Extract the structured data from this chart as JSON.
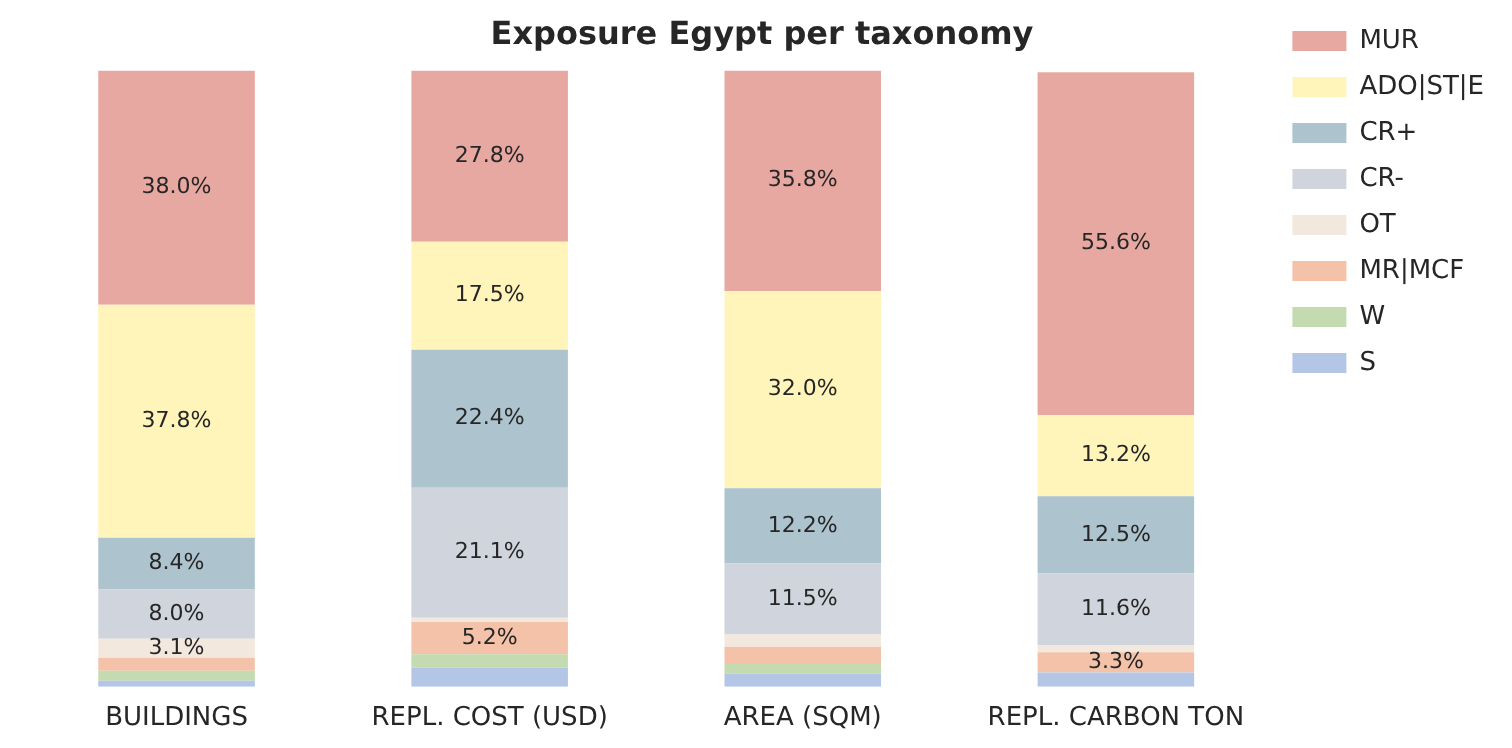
{
  "chart_data": {
    "type": "bar",
    "title": "Exposure Egypt per taxonomy",
    "stacked": true,
    "legend": "top right",
    "grid": false,
    "categories": [
      "BUILDINGS",
      "REPL. COST (USD)",
      "AREA (SQM)",
      "REPL. CARBON TON"
    ],
    "series": [
      {
        "name": "S",
        "color": "#b4c6e6",
        "values": [
          1.0,
          3.1,
          2.1,
          2.3
        ],
        "value_labels": [
          null,
          null,
          null,
          null
        ]
      },
      {
        "name": "W",
        "color": "#c4dab0",
        "values": [
          1.6,
          2.2,
          1.6,
          null
        ],
        "value_labels": [
          null,
          null,
          null,
          null
        ]
      },
      {
        "name": "MR|MCF",
        "color": "#f4c2a8",
        "values": [
          2.1,
          5.2,
          2.8,
          3.3
        ],
        "value_labels": [
          null,
          "5.2%",
          null,
          "3.3%"
        ]
      },
      {
        "name": "OT",
        "color": "#f3e8de",
        "values": [
          3.1,
          0.7,
          2.0,
          1.2
        ],
        "value_labels": [
          "3.1%",
          null,
          null,
          null
        ]
      },
      {
        "name": "CR-",
        "color": "#d0d4dc",
        "values": [
          8.0,
          21.1,
          11.5,
          11.6
        ],
        "value_labels": [
          "8.0%",
          "21.1%",
          "11.5%",
          "11.6%"
        ]
      },
      {
        "name": "CR+",
        "color": "#adc4ce",
        "values": [
          8.4,
          22.4,
          12.2,
          12.5
        ],
        "value_labels": [
          "8.4%",
          "22.4%",
          "12.2%",
          "12.5%"
        ]
      },
      {
        "name": "ADO|ST|E",
        "color": "#fff5bb",
        "values": [
          37.8,
          17.5,
          32.0,
          13.2
        ],
        "value_labels": [
          "37.8%",
          "17.5%",
          "32.0%",
          "13.2%"
        ]
      },
      {
        "name": "MUR",
        "color": "#e8a8a2",
        "values": [
          38.0,
          27.8,
          35.8,
          55.6
        ],
        "value_labels": [
          "38.0%",
          "27.8%",
          "35.8%",
          "55.6%"
        ]
      }
    ]
  }
}
